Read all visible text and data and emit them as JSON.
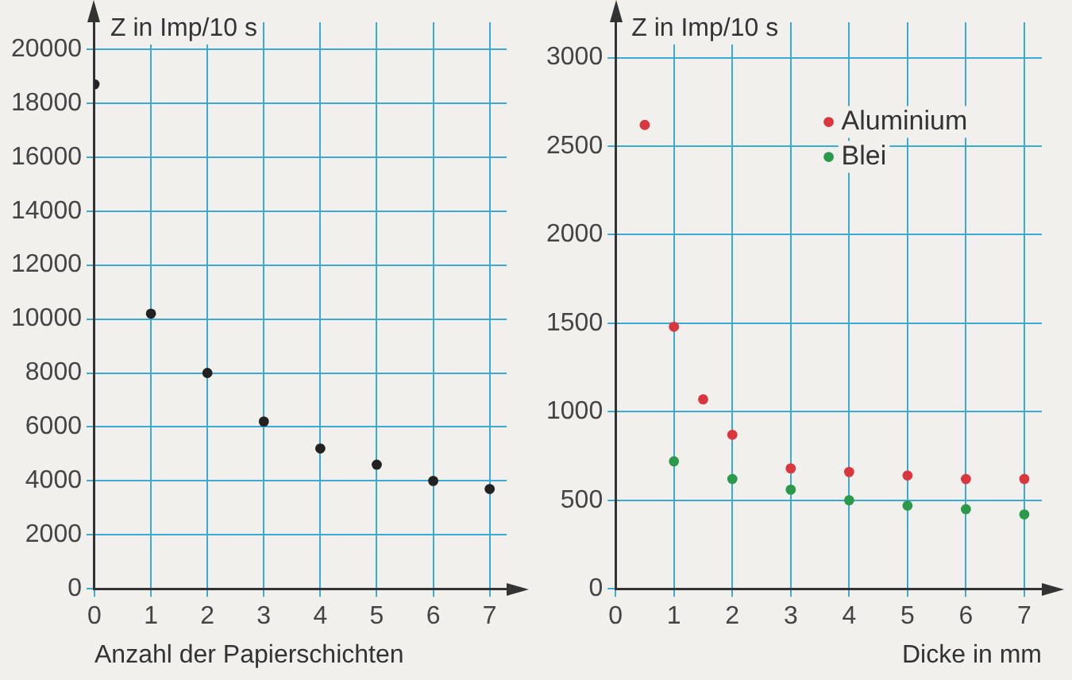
{
  "chart_data": [
    {
      "type": "scatter",
      "xlabel": "Anzahl der Papierschichten",
      "ylabel": "Z in Imp/10 s",
      "x": [
        0,
        1,
        2,
        3,
        4,
        5,
        6,
        7
      ],
      "series": [
        {
          "color": "#222222",
          "values": [
            18700,
            10200,
            8000,
            6200,
            5200,
            4600,
            4000,
            3700
          ]
        }
      ],
      "xlim": [
        0,
        7.3
      ],
      "xticks": [
        0,
        1,
        2,
        3,
        4,
        5,
        6,
        7
      ],
      "ylim": [
        0,
        21000
      ],
      "yticks": [
        0,
        2000,
        4000,
        6000,
        8000,
        10000,
        12000,
        14000,
        16000,
        18000,
        20000
      ],
      "grid": true,
      "marker": "circle"
    },
    {
      "type": "scatter",
      "xlabel": "Dicke in mm",
      "ylabel": "Z in Imp/10 s",
      "series": [
        {
          "name": "Aluminium",
          "color": "#d9363e",
          "x": [
            0.5,
            1,
            1.5,
            2,
            3,
            4,
            5,
            6,
            7
          ],
          "values": [
            2620,
            1480,
            1070,
            870,
            680,
            660,
            640,
            620,
            620
          ]
        },
        {
          "name": "Blei",
          "color": "#2a9a4a",
          "x": [
            1,
            2,
            3,
            4,
            5,
            6,
            7
          ],
          "values": [
            720,
            620,
            560,
            500,
            470,
            450,
            420
          ]
        }
      ],
      "xlim": [
        0,
        7.3
      ],
      "xticks": [
        0,
        1,
        2,
        3,
        4,
        5,
        6,
        7
      ],
      "ylim": [
        0,
        3200
      ],
      "yticks": [
        0,
        500,
        1000,
        1500,
        2000,
        2500,
        3000
      ],
      "grid": true,
      "legend": "top right",
      "marker": "circle"
    }
  ]
}
